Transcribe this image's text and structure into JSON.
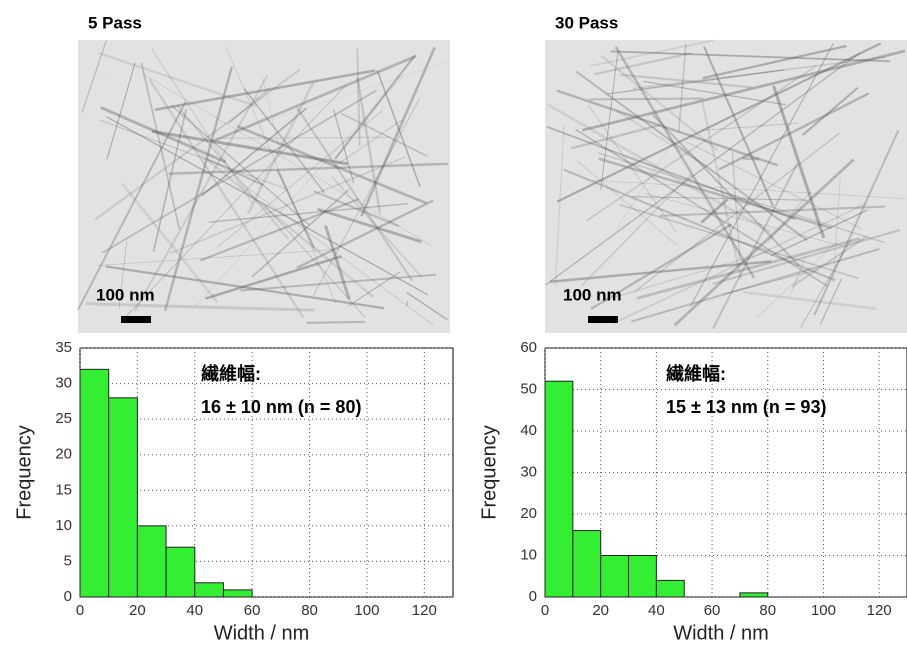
{
  "chart_data": [
    {
      "type": "histogram",
      "title": "5 Pass",
      "scale_bar_label": "100 nm",
      "annotation": [
        "繊維幅:",
        "16 ± 10 nm (n = 80)"
      ],
      "xlabel": "Width / nm",
      "ylabel": "Frequency",
      "bins": [
        0,
        10,
        20,
        30,
        40,
        50,
        60
      ],
      "values": [
        32,
        28,
        10,
        7,
        2,
        1
      ],
      "color": "#33ee33",
      "xlim": [
        0,
        130
      ],
      "ylim": [
        0,
        35
      ],
      "xticks": [
        0,
        20,
        40,
        60,
        80,
        100,
        120
      ],
      "yticks": [
        0,
        5,
        10,
        15,
        20,
        25,
        30,
        35
      ],
      "grid": true
    },
    {
      "type": "histogram",
      "title": "30 Pass",
      "scale_bar_label": "100 nm",
      "annotation": [
        "繊維幅:",
        "15 ± 13 nm (n = 93)"
      ],
      "xlabel": "Width / nm",
      "ylabel": "Frequency",
      "bins": [
        0,
        10,
        20,
        30,
        40,
        50,
        60,
        70,
        80
      ],
      "values": [
        52,
        16,
        10,
        10,
        4,
        0,
        0,
        1
      ],
      "color": "#33ee33",
      "xlim": [
        0,
        130
      ],
      "ylim": [
        0,
        60
      ],
      "xticks": [
        0,
        20,
        40,
        60,
        80,
        100,
        120
      ],
      "yticks": [
        0,
        10,
        20,
        30,
        40,
        50,
        60
      ],
      "grid": true
    }
  ]
}
